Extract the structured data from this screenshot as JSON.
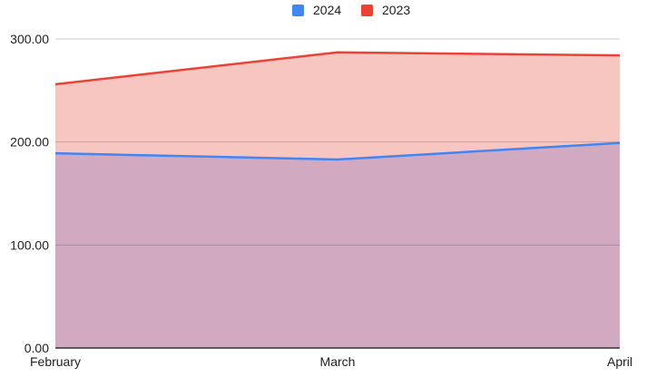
{
  "chart_data": {
    "type": "area",
    "categories": [
      "February",
      "March",
      "April"
    ],
    "series": [
      {
        "name": "2024",
        "values": [
          189,
          183,
          199
        ],
        "color": "#4285f4",
        "fill": "#d1aac1"
      },
      {
        "name": "2023",
        "values": [
          256,
          287,
          284
        ],
        "color": "#ea4335",
        "fill": "#f8c6c1"
      }
    ],
    "y_ticks": [
      "0.00",
      "100.00",
      "200.00",
      "300.00"
    ],
    "ylim": [
      0,
      300
    ],
    "grid": true,
    "legend_position": "top-center",
    "title": "",
    "xlabel": "",
    "ylabel": ""
  }
}
